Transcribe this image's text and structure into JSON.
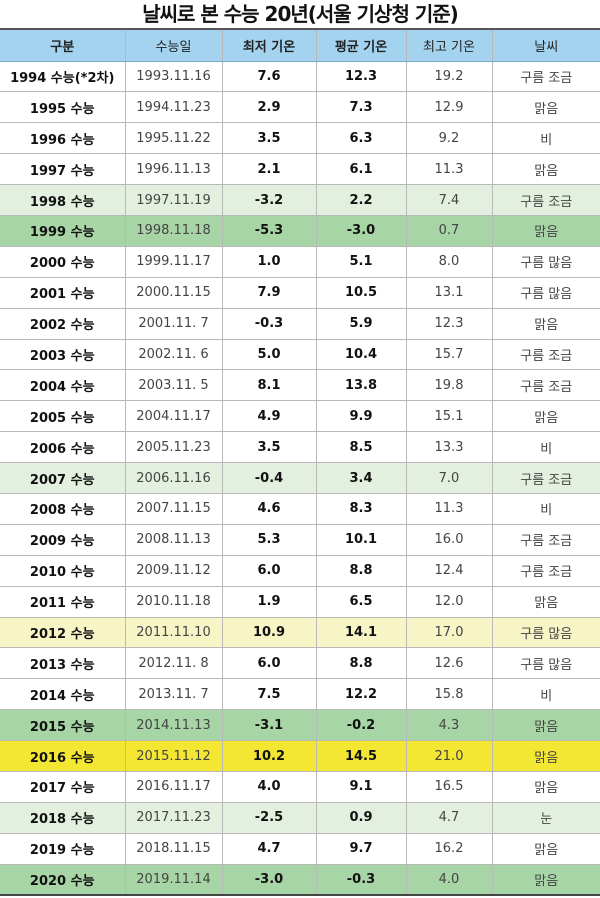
{
  "title": "날씨로 본 수능 20년(서울 기상청 기준)",
  "headers": [
    "구분",
    "수능일",
    "최저 기온",
    "평균 기온",
    "최고 기온",
    "날씨"
  ],
  "rows": [
    {
      "label": "1994 수능(*2차)",
      "date": "1993.11.16",
      "min": "7.6",
      "avg": "12.3",
      "max": "19.2",
      "weather": "구름 조금",
      "highlight": "none"
    },
    {
      "label": "1995 수능",
      "date": "1994.11.23",
      "min": "2.9",
      "avg": "7.3",
      "max": "12.9",
      "weather": "맑음",
      "highlight": "none"
    },
    {
      "label": "1996 수능",
      "date": "1995.11.22",
      "min": "3.5",
      "avg": "6.3",
      "max": "9.2",
      "weather": "비",
      "highlight": "none"
    },
    {
      "label": "1997 수능",
      "date": "1996.11.13",
      "min": "2.1",
      "avg": "6.1",
      "max": "11.3",
      "weather": "맑음",
      "highlight": "none"
    },
    {
      "label": "1998 수능",
      "date": "1997.11.19",
      "min": "-3.2",
      "avg": "2.2",
      "max": "7.4",
      "weather": "구름 조금",
      "highlight": "light-green"
    },
    {
      "label": "1999 수능",
      "date": "1998.11.18",
      "min": "-5.3",
      "avg": "-3.0",
      "max": "0.7",
      "weather": "맑음",
      "highlight": "green"
    },
    {
      "label": "2000 수능",
      "date": "1999.11.17",
      "min": "1.0",
      "avg": "5.1",
      "max": "8.0",
      "weather": "구름 많음",
      "highlight": "none"
    },
    {
      "label": "2001 수능",
      "date": "2000.11.15",
      "min": "7.9",
      "avg": "10.5",
      "max": "13.1",
      "weather": "구름 많음",
      "highlight": "none"
    },
    {
      "label": "2002 수능",
      "date": "2001.11. 7",
      "min": "-0.3",
      "avg": "5.9",
      "max": "12.3",
      "weather": "맑음",
      "highlight": "none"
    },
    {
      "label": "2003 수능",
      "date": "2002.11. 6",
      "min": "5.0",
      "avg": "10.4",
      "max": "15.7",
      "weather": "구름 조금",
      "highlight": "none"
    },
    {
      "label": "2004 수능",
      "date": "2003.11. 5",
      "min": "8.1",
      "avg": "13.8",
      "max": "19.8",
      "weather": "구름 조금",
      "highlight": "none"
    },
    {
      "label": "2005 수능",
      "date": "2004.11.17",
      "min": "4.9",
      "avg": "9.9",
      "max": "15.1",
      "weather": "맑음",
      "highlight": "none"
    },
    {
      "label": "2006 수능",
      "date": "2005.11.23",
      "min": "3.5",
      "avg": "8.5",
      "max": "13.3",
      "weather": "비",
      "highlight": "none"
    },
    {
      "label": "2007 수능",
      "date": "2006.11.16",
      "min": "-0.4",
      "avg": "3.4",
      "max": "7.0",
      "weather": "구름 조금",
      "highlight": "light-green"
    },
    {
      "label": "2008 수능",
      "date": "2007.11.15",
      "min": "4.6",
      "avg": "8.3",
      "max": "11.3",
      "weather": "비",
      "highlight": "none"
    },
    {
      "label": "2009 수능",
      "date": "2008.11.13",
      "min": "5.3",
      "avg": "10.1",
      "max": "16.0",
      "weather": "구름 조금",
      "highlight": "none"
    },
    {
      "label": "2010 수능",
      "date": "2009.11.12",
      "min": "6.0",
      "avg": "8.8",
      "max": "12.4",
      "weather": "구름 조금",
      "highlight": "none"
    },
    {
      "label": "2011 수능",
      "date": "2010.11.18",
      "min": "1.9",
      "avg": "6.5",
      "max": "12.0",
      "weather": "맑음",
      "highlight": "none"
    },
    {
      "label": "2012 수능",
      "date": "2011.11.10",
      "min": "10.9",
      "avg": "14.1",
      "max": "17.0",
      "weather": "구름 많음",
      "highlight": "light-yellow"
    },
    {
      "label": "2013 수능",
      "date": "2012.11. 8",
      "min": "6.0",
      "avg": "8.8",
      "max": "12.6",
      "weather": "구름 많음",
      "highlight": "none"
    },
    {
      "label": "2014 수능",
      "date": "2013.11. 7",
      "min": "7.5",
      "avg": "12.2",
      "max": "15.8",
      "weather": "비",
      "highlight": "none"
    },
    {
      "label": "2015 수능",
      "date": "2014.11.13",
      "min": "-3.1",
      "avg": "-0.2",
      "max": "4.3",
      "weather": "맑음",
      "highlight": "green"
    },
    {
      "label": "2016 수능",
      "date": "2015.11.12",
      "min": "10.2",
      "avg": "14.5",
      "max": "21.0",
      "weather": "맑음",
      "highlight": "yellow"
    },
    {
      "label": "2017 수능",
      "date": "2016.11.17",
      "min": "4.0",
      "avg": "9.1",
      "max": "16.5",
      "weather": "맑음",
      "highlight": "none"
    },
    {
      "label": "2018 수능",
      "date": "2017.11.23",
      "min": "-2.5",
      "avg": "0.9",
      "max": "4.7",
      "weather": "눈",
      "highlight": "light-green"
    },
    {
      "label": "2019 수능",
      "date": "2018.11.15",
      "min": "4.7",
      "avg": "9.7",
      "max": "16.2",
      "weather": "맑음",
      "highlight": "none"
    },
    {
      "label": "2020 수능",
      "date": "2019.11.14",
      "min": "-3.0",
      "avg": "-0.3",
      "max": "4.0",
      "weather": "맑음",
      "highlight": "green"
    }
  ],
  "colors": {
    "header_bg": "#a3d3ee",
    "light_green": "#e3f0df",
    "green": "#a8d5a6",
    "light_yellow": "#f7f5c6",
    "yellow": "#f4e733"
  }
}
